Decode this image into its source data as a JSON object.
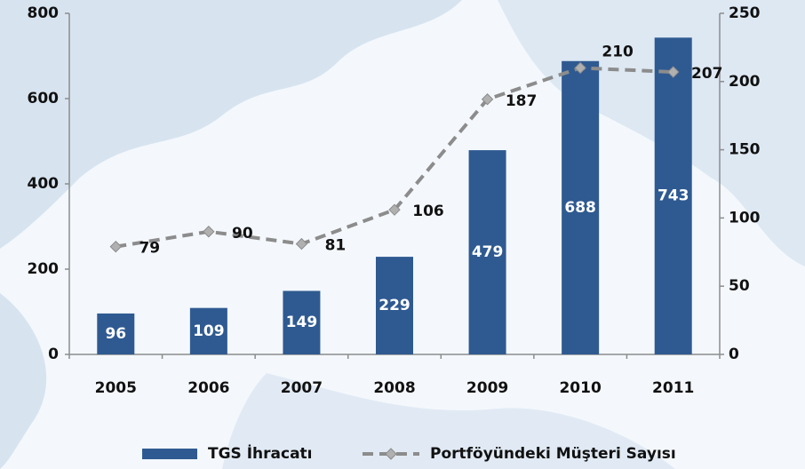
{
  "chart_data": {
    "type": "bar_line",
    "categories": [
      "2005",
      "2006",
      "2007",
      "2008",
      "2009",
      "2010",
      "2011"
    ],
    "series": [
      {
        "name": "TGS İhracatı",
        "color": "#2f5a91",
        "values": [
          96,
          109,
          149,
          229,
          479,
          688,
          743
        ]
      },
      {
        "name": "Portföyündeki Müşteri Sayısı",
        "color": "#8c8c8c",
        "axis": "y2",
        "values": [
          79,
          90,
          81,
          106,
          187,
          210,
          207
        ]
      }
    ],
    "ylim": [
      0,
      800
    ],
    "yticks": [
      0,
      200,
      400,
      600,
      800
    ],
    "y2lim": [
      0,
      250
    ],
    "y2ticks": [
      0,
      50,
      100,
      150,
      200,
      250
    ],
    "legend": "bottom"
  }
}
